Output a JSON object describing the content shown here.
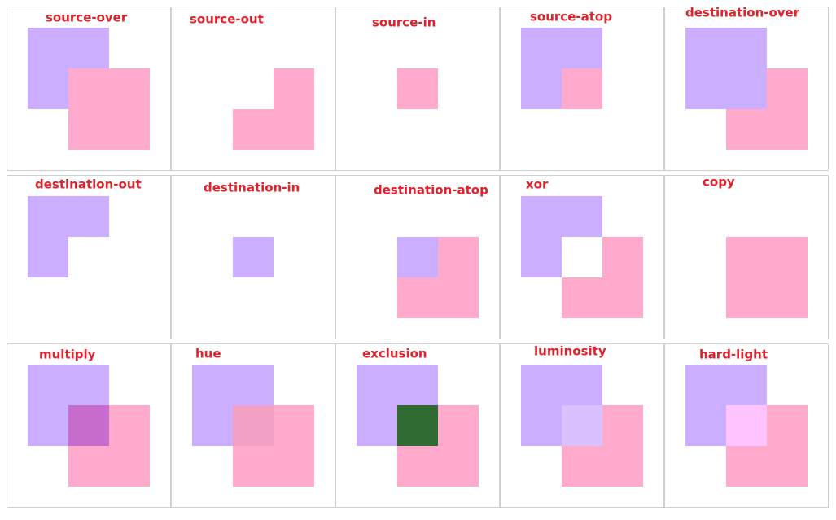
{
  "panels": [
    "source-over",
    "source-out",
    "source-in",
    "source-atop",
    "destination-over",
    "destination-out",
    "destination-in",
    "destination-atop",
    "xor",
    "copy",
    "multiply",
    "hue",
    "exclusion",
    "luminosity",
    "hard-light"
  ]
}
